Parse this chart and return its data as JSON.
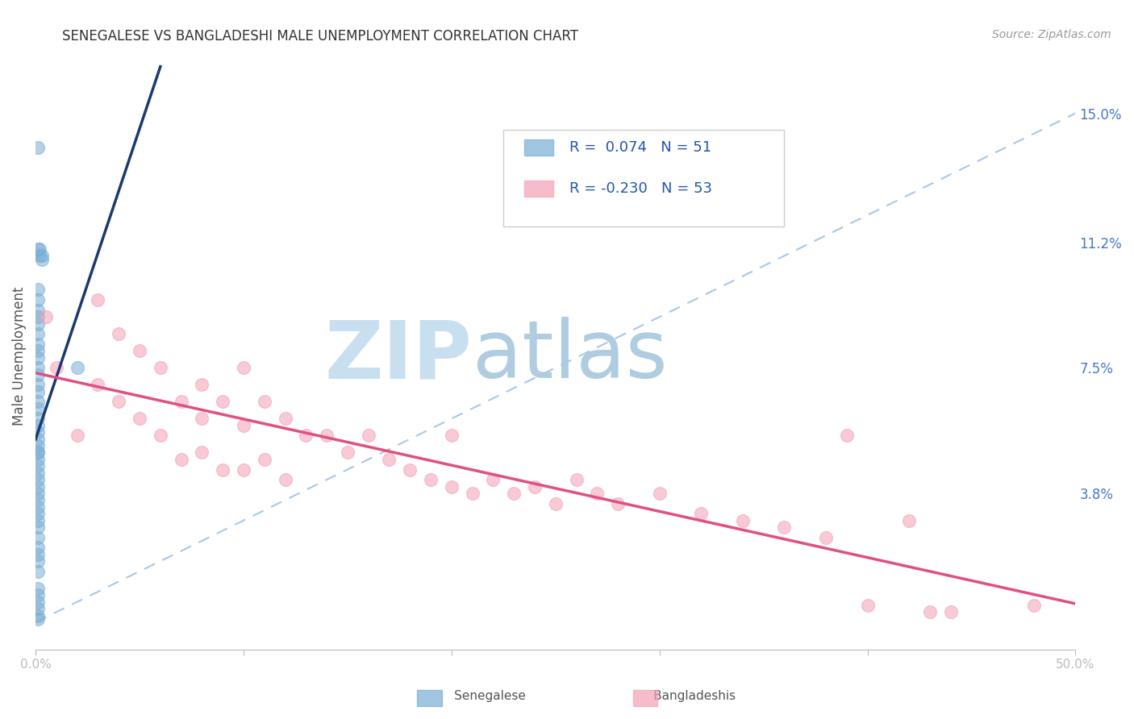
{
  "title": "SENEGALESE VS BANGLADESHI MALE UNEMPLOYMENT CORRELATION CHART",
  "source": "Source: ZipAtlas.com",
  "ylabel": "Male Unemployment",
  "xlim": [
    0.0,
    0.5
  ],
  "ylim": [
    -0.008,
    0.165
  ],
  "senegalese_color": "#7aaed6",
  "bangladeshi_color": "#f4a0b5",
  "senegalese_R": 0.074,
  "senegalese_N": 51,
  "bangladeshi_R": -0.23,
  "bangladeshi_N": 53,
  "background_color": "#FFFFFF",
  "grid_color": "#CCCCCC",
  "senegalese_x": [
    0.001,
    0.001,
    0.002,
    0.002,
    0.003,
    0.003,
    0.001,
    0.001,
    0.001,
    0.001,
    0.001,
    0.001,
    0.001,
    0.001,
    0.001,
    0.001,
    0.001,
    0.001,
    0.001,
    0.001,
    0.001,
    0.001,
    0.001,
    0.001,
    0.001,
    0.001,
    0.001,
    0.001,
    0.001,
    0.001,
    0.001,
    0.001,
    0.001,
    0.001,
    0.001,
    0.001,
    0.001,
    0.001,
    0.001,
    0.001,
    0.001,
    0.001,
    0.001,
    0.02,
    0.001,
    0.001,
    0.001,
    0.001,
    0.001,
    0.001,
    0.001
  ],
  "senegalese_y": [
    0.14,
    0.11,
    0.11,
    0.108,
    0.108,
    0.107,
    0.098,
    0.095,
    0.092,
    0.09,
    0.088,
    0.085,
    0.082,
    0.08,
    0.078,
    0.075,
    0.073,
    0.07,
    0.068,
    0.065,
    0.063,
    0.06,
    0.058,
    0.056,
    0.054,
    0.052,
    0.05,
    0.048,
    0.046,
    0.044,
    0.042,
    0.04,
    0.038,
    0.036,
    0.034,
    0.032,
    0.03,
    0.028,
    0.025,
    0.022,
    0.02,
    0.018,
    0.015,
    0.075,
    0.01,
    0.008,
    0.006,
    0.004,
    0.002,
    0.05,
    0.001
  ],
  "bangladeshi_x": [
    0.005,
    0.01,
    0.02,
    0.03,
    0.03,
    0.04,
    0.04,
    0.05,
    0.05,
    0.06,
    0.06,
    0.07,
    0.07,
    0.08,
    0.08,
    0.08,
    0.09,
    0.09,
    0.1,
    0.1,
    0.1,
    0.11,
    0.11,
    0.12,
    0.12,
    0.13,
    0.14,
    0.15,
    0.16,
    0.17,
    0.18,
    0.19,
    0.2,
    0.2,
    0.21,
    0.22,
    0.23,
    0.24,
    0.25,
    0.26,
    0.27,
    0.28,
    0.3,
    0.32,
    0.34,
    0.36,
    0.38,
    0.39,
    0.4,
    0.42,
    0.43,
    0.44,
    0.48
  ],
  "bangladeshi_y": [
    0.09,
    0.075,
    0.055,
    0.07,
    0.095,
    0.085,
    0.065,
    0.08,
    0.06,
    0.075,
    0.055,
    0.065,
    0.048,
    0.07,
    0.06,
    0.05,
    0.065,
    0.045,
    0.075,
    0.058,
    0.045,
    0.065,
    0.048,
    0.06,
    0.042,
    0.055,
    0.055,
    0.05,
    0.055,
    0.048,
    0.045,
    0.042,
    0.055,
    0.04,
    0.038,
    0.042,
    0.038,
    0.04,
    0.035,
    0.042,
    0.038,
    0.035,
    0.038,
    0.032,
    0.03,
    0.028,
    0.025,
    0.055,
    0.005,
    0.03,
    0.003,
    0.003,
    0.005
  ],
  "senegalese_line_color": "#1a3a6e",
  "bangladeshi_line_color": "#e05080",
  "diagonal_line_color": "#a8c8e8",
  "watermark_zip_color": "#c8dff0",
  "watermark_atlas_color": "#b0cce0",
  "legend_text_color": "#2255aa"
}
